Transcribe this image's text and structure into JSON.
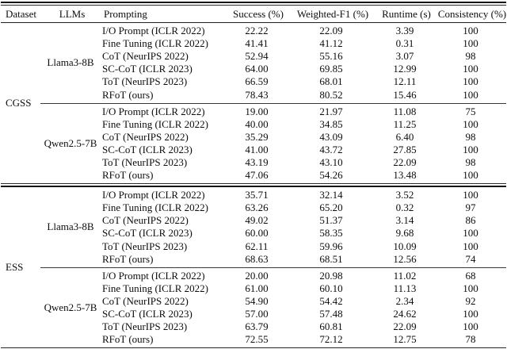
{
  "table": {
    "columns": {
      "dataset": "Dataset",
      "llms": "LLMs",
      "prompting": "Prompting",
      "success": "Success (%)",
      "weighted_f1": "Weighted-F1 (%)",
      "runtime": "Runtime (s)",
      "consistency": "Consistency (%)"
    },
    "text_color": "#0d0d0d",
    "background_color": "#ffffff",
    "sections": [
      {
        "dataset": "CGSS",
        "llm_blocks": [
          {
            "llm": "Llama3-8B",
            "rows": [
              {
                "prompting": "I/O Prompt (ICLR 2022)",
                "success": "22.22",
                "weighted_f1": "22.09",
                "runtime": "3.39",
                "consistency": "100"
              },
              {
                "prompting": "Fine Tuning (ICLR 2022)",
                "success": "41.41",
                "weighted_f1": "41.12",
                "runtime": "0.31",
                "consistency": "100"
              },
              {
                "prompting": "CoT (NeurIPS 2022)",
                "success": "52.94",
                "weighted_f1": "55.16",
                "runtime": "3.07",
                "consistency": "98"
              },
              {
                "prompting": "SC-CoT (ICLR 2023)",
                "success": "64.00",
                "weighted_f1": "69.85",
                "runtime": "12.99",
                "consistency": "100"
              },
              {
                "prompting": "ToT (NeurIPS 2023)",
                "success": "66.59",
                "weighted_f1": "68.01",
                "runtime": "12.11",
                "consistency": "100"
              },
              {
                "prompting": "RFoT (ours)",
                "success": "78.43",
                "weighted_f1": "80.52",
                "runtime": "15.46",
                "consistency": "100"
              }
            ]
          },
          {
            "llm": "Qwen2.5-7B",
            "rows": [
              {
                "prompting": "I/O Prompt (ICLR 2022)",
                "success": "19.00",
                "weighted_f1": "21.97",
                "runtime": "11.08",
                "consistency": "75"
              },
              {
                "prompting": "Fine Tuning (ICLR 2022)",
                "success": "40.00",
                "weighted_f1": "34.85",
                "runtime": "11.25",
                "consistency": "100"
              },
              {
                "prompting": "CoT (NeurIPS 2022)",
                "success": "35.29",
                "weighted_f1": "43.09",
                "runtime": "6.40",
                "consistency": "98"
              },
              {
                "prompting": "SC-CoT (ICLR 2023)",
                "success": "41.00",
                "weighted_f1": "43.72",
                "runtime": "27.85",
                "consistency": "100"
              },
              {
                "prompting": "ToT (NeurIPS 2023)",
                "success": "43.19",
                "weighted_f1": "43.10",
                "runtime": "22.09",
                "consistency": "98"
              },
              {
                "prompting": "RFoT (ours)",
                "success": "47.06",
                "weighted_f1": "54.26",
                "runtime": "13.48",
                "consistency": "100"
              }
            ]
          }
        ]
      },
      {
        "dataset": "ESS",
        "llm_blocks": [
          {
            "llm": "Llama3-8B",
            "rows": [
              {
                "prompting": "I/O Prompt (ICLR 2022)",
                "success": "35.71",
                "weighted_f1": "32.14",
                "runtime": "3.52",
                "consistency": "100"
              },
              {
                "prompting": "Fine Tuning (ICLR 2022)",
                "success": "63.26",
                "weighted_f1": "65.20",
                "runtime": "0.32",
                "consistency": "97"
              },
              {
                "prompting": "CoT (NeurIPS 2022)",
                "success": "49.02",
                "weighted_f1": "51.37",
                "runtime": "3.14",
                "consistency": "86"
              },
              {
                "prompting": "SC-CoT (ICLR 2023)",
                "success": "60.00",
                "weighted_f1": "58.35",
                "runtime": "9.68",
                "consistency": "100"
              },
              {
                "prompting": "ToT (NeurIPS 2023)",
                "success": "62.11",
                "weighted_f1": "59.96",
                "runtime": "10.09",
                "consistency": "100"
              },
              {
                "prompting": "RFoT (ours)",
                "success": "68.63",
                "weighted_f1": "68.51",
                "runtime": "12.56",
                "consistency": "74"
              }
            ]
          },
          {
            "llm": "Qwen2.5-7B",
            "rows": [
              {
                "prompting": "I/O Prompt (ICLR 2022)",
                "success": "20.00",
                "weighted_f1": "20.98",
                "runtime": "11.02",
                "consistency": "68"
              },
              {
                "prompting": "Fine Tuning (ICLR 2022)",
                "success": "61.00",
                "weighted_f1": "60.10",
                "runtime": "11.13",
                "consistency": "100"
              },
              {
                "prompting": "CoT (NeurIPS 2022)",
                "success": "54.90",
                "weighted_f1": "54.42",
                "runtime": "2.34",
                "consistency": "92"
              },
              {
                "prompting": "SC-CoT (ICLR 2023)",
                "success": "57.00",
                "weighted_f1": "57.48",
                "runtime": "24.62",
                "consistency": "100"
              },
              {
                "prompting": "ToT (NeurIPS 2023)",
                "success": "63.79",
                "weighted_f1": "60.81",
                "runtime": "22.09",
                "consistency": "100"
              },
              {
                "prompting": "RFoT (ours)",
                "success": "72.55",
                "weighted_f1": "72.12",
                "runtime": "12.75",
                "consistency": "78"
              }
            ]
          }
        ]
      }
    ]
  }
}
